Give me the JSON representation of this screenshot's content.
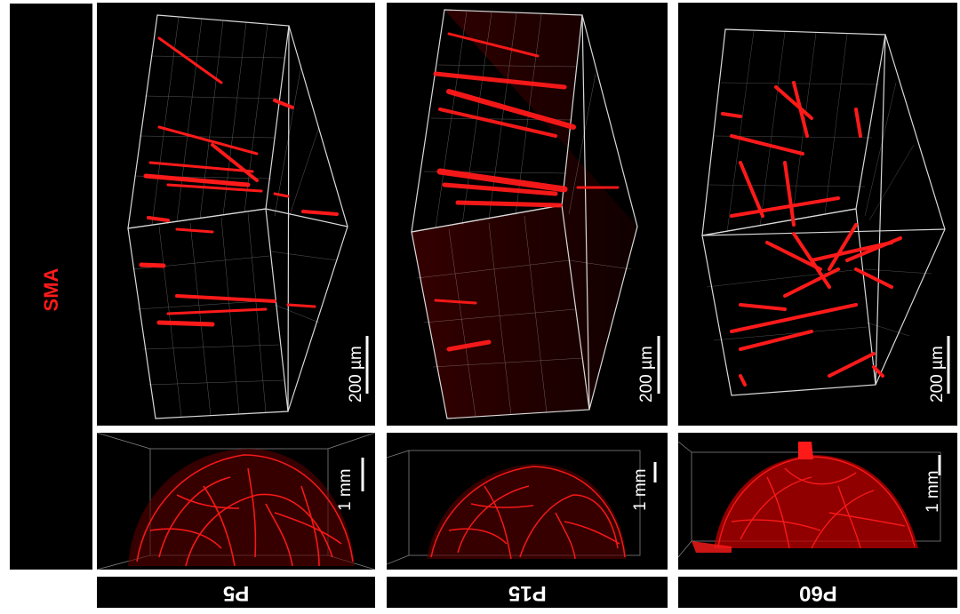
{
  "stain_label": "SMA",
  "stages": [
    "P5",
    "P15",
    "P60"
  ],
  "scale_top": "200 µm",
  "scale_bottom": "1 mm",
  "colors": {
    "signal": "#ff1a1a",
    "background": "#000000",
    "grid": "#ffffff"
  }
}
